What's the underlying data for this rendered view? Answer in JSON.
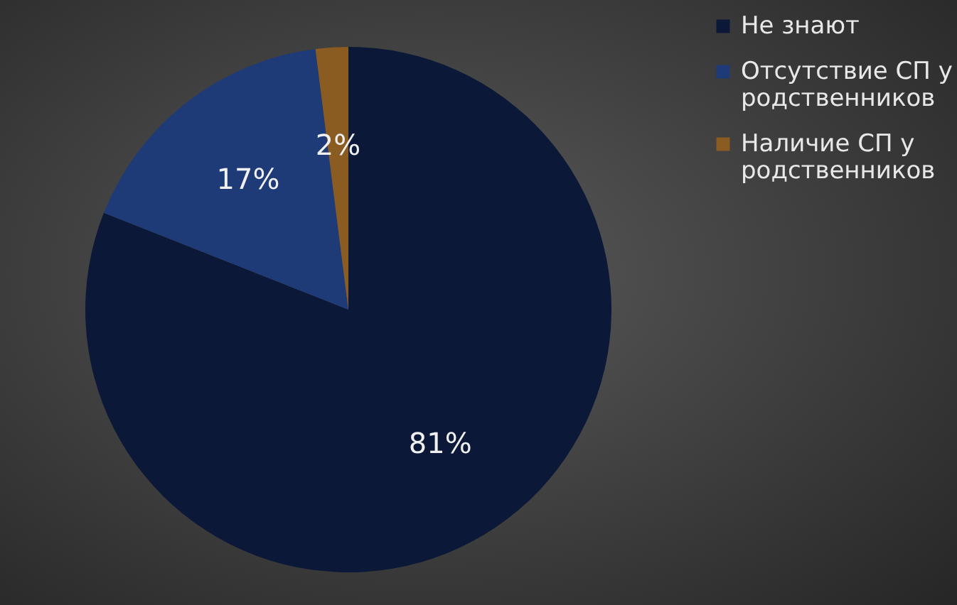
{
  "chart_data": {
    "type": "pie",
    "categories": [
      "Не знают",
      "Отсутствие СП у родственников",
      "Наличие СП у родственников"
    ],
    "values": [
      81,
      17,
      2
    ],
    "value_labels": [
      "81%",
      "17%",
      "2%"
    ],
    "colors": [
      "#0b1838",
      "#1e3b77",
      "#8a5c22"
    ],
    "legend": "right"
  }
}
